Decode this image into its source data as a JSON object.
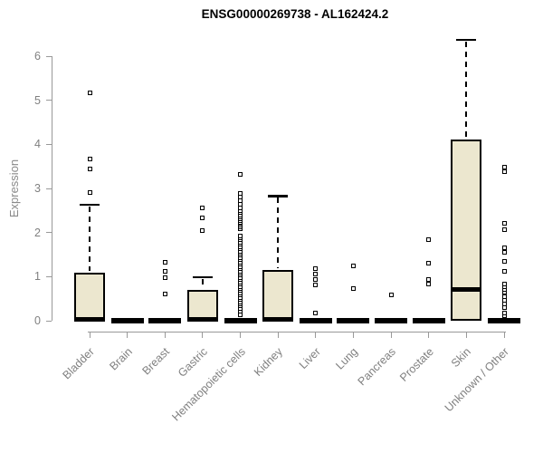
{
  "chart_data": {
    "type": "boxplot",
    "title": "ENSG00000269738 - AL162424.2",
    "ylabel": "Expression",
    "xlabel": "",
    "ylim": [
      0,
      6.6
    ],
    "grid": false,
    "legend": "none",
    "y_ticks": [
      "0",
      "1",
      "2",
      "3",
      "4",
      "5",
      "6"
    ],
    "colors": {
      "box_fill": "#ece7cf",
      "box_border": "#000000",
      "axis_line": "#999999",
      "tick_label": "#808080",
      "title": "#000000",
      "background": "#ffffff"
    },
    "categories": [
      "Bladder",
      "Brain",
      "Breast",
      "Gastric",
      "Hematopoietic cells",
      "Kidney",
      "Liver",
      "Lung",
      "Pancreas",
      "Prostate",
      "Skin",
      "Unknown / Other"
    ],
    "series": [
      {
        "category": "Bladder",
        "q1": 0,
        "median": 0.04,
        "q3": 1.08,
        "whisker_low": 0,
        "whisker_high": 2.64,
        "outliers": [
          2.91,
          3.45,
          3.67,
          5.17
        ]
      },
      {
        "category": "Brain",
        "q1": 0,
        "median": 0,
        "q3": 0,
        "whisker_low": 0,
        "whisker_high": 0,
        "outliers": []
      },
      {
        "category": "Breast",
        "q1": 0,
        "median": 0,
        "q3": 0,
        "whisker_low": 0,
        "whisker_high": 0,
        "outliers": [
          0.6,
          0.97,
          1.13,
          1.32
        ]
      },
      {
        "category": "Gastric",
        "q1": 0,
        "median": 0.03,
        "q3": 0.7,
        "whisker_low": 0,
        "whisker_high": 0.99,
        "outliers": [
          2.05,
          2.34,
          2.55
        ]
      },
      {
        "category": "Hematopoietic cells",
        "q1": 0,
        "median": 0,
        "q3": 0,
        "whisker_low": 0,
        "whisker_high": 0,
        "outliers": [
          0.14,
          0.22,
          0.28,
          0.33,
          0.38,
          0.43,
          0.48,
          0.53,
          0.58,
          0.63,
          0.68,
          0.73,
          0.78,
          0.83,
          0.88,
          0.93,
          0.98,
          1.03,
          1.08,
          1.13,
          1.18,
          1.23,
          1.28,
          1.33,
          1.38,
          1.43,
          1.48,
          1.53,
          1.58,
          1.63,
          1.68,
          1.73,
          1.78,
          1.83,
          1.88,
          1.93,
          2.08,
          2.12,
          2.16,
          2.2,
          2.24,
          2.28,
          2.32,
          2.36,
          2.4,
          2.45,
          2.5,
          2.55,
          2.65,
          2.72,
          2.8,
          2.89,
          3.32
        ]
      },
      {
        "category": "Kidney",
        "q1": 0,
        "median": 0.03,
        "q3": 1.16,
        "whisker_low": 0,
        "whisker_high": 2.83,
        "outliers": []
      },
      {
        "category": "Liver",
        "q1": 0,
        "median": 0,
        "q3": 0,
        "whisker_low": 0,
        "whisker_high": 0,
        "outliers": [
          0.18,
          0.82,
          0.93,
          1.05,
          1.18
        ]
      },
      {
        "category": "Lung",
        "q1": 0,
        "median": 0,
        "q3": 0,
        "whisker_low": 0,
        "whisker_high": 0,
        "outliers": [
          0.73,
          1.25
        ]
      },
      {
        "category": "Pancreas",
        "q1": 0,
        "median": 0,
        "q3": 0,
        "whisker_low": 0,
        "whisker_high": 0,
        "outliers": [
          0.58
        ]
      },
      {
        "category": "Prostate",
        "q1": 0,
        "median": 0,
        "q3": 0,
        "whisker_low": 0,
        "whisker_high": 0,
        "outliers": [
          0.84,
          0.94,
          1.3,
          1.83
        ]
      },
      {
        "category": "Skin",
        "q1": 0,
        "median": 0.7,
        "q3": 4.12,
        "whisker_low": 0,
        "whisker_high": 6.38,
        "outliers": []
      },
      {
        "category": "Unknown / Other",
        "q1": 0,
        "median": 0,
        "q3": 0,
        "whisker_low": 0,
        "whisker_high": 0,
        "outliers": [
          0.12,
          0.18,
          0.29,
          0.38,
          0.46,
          0.55,
          0.64,
          0.7,
          0.78,
          0.84,
          1.11,
          1.35,
          1.55,
          1.66,
          2.07,
          2.2,
          3.38,
          3.49
        ]
      }
    ]
  }
}
